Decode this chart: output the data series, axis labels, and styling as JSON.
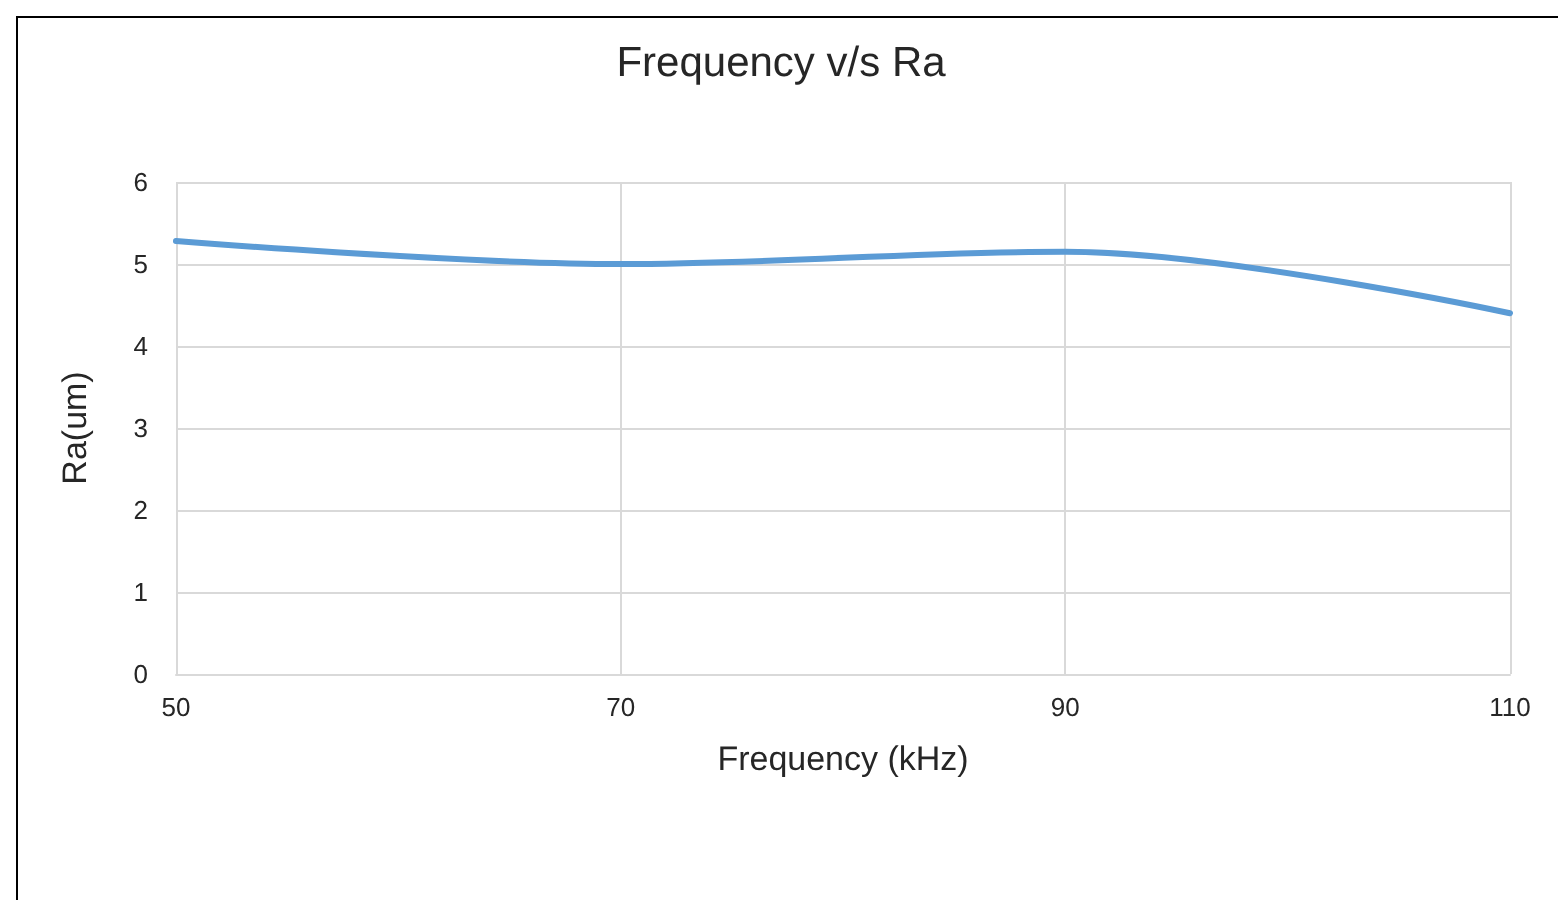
{
  "chart_data": {
    "type": "line",
    "title": "Frequency v/s Ra",
    "xlabel": "Frequency (kHz)",
    "ylabel": "Ra(um)",
    "x": [
      50,
      70,
      90,
      110
    ],
    "series": [
      {
        "color": "#5b9bd5",
        "values": [
          5.28,
          5.0,
          5.15,
          4.4
        ]
      }
    ],
    "xlim": [
      50,
      110
    ],
    "xticks": [
      50,
      70,
      90,
      110
    ],
    "ylim": [
      0,
      6
    ],
    "yticks": [
      0,
      1,
      2,
      3,
      4,
      5,
      6
    ],
    "grid": true,
    "marker": "none",
    "line_style": "solid"
  }
}
